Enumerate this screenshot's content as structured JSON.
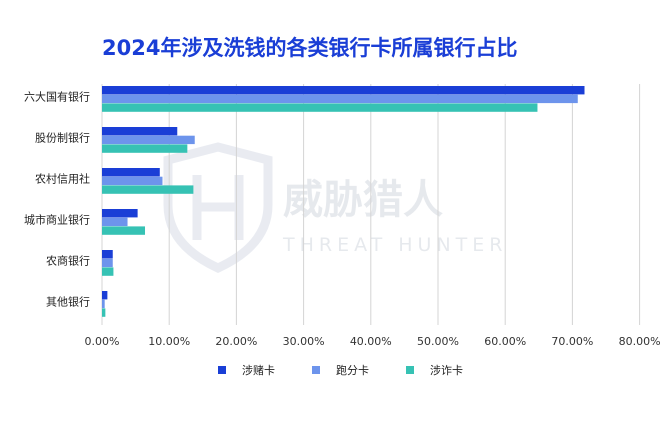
{
  "chart_data": {
    "type": "bar",
    "orientation": "horizontal",
    "title": "2024年涉及洗钱的各类银行卡所属银行占比",
    "xlabel": "",
    "ylabel": "",
    "categories": [
      "六大国有银行",
      "股份制银行",
      "农村信用社",
      "城市商业银行",
      "农商银行",
      "其他银行"
    ],
    "series": [
      {
        "name": "涉赌卡",
        "color": "#1a3ed6",
        "values": [
          71.8,
          11.2,
          8.6,
          5.3,
          1.6,
          0.8
        ]
      },
      {
        "name": "跑分卡",
        "color": "#6d94ec",
        "values": [
          70.8,
          13.8,
          9.0,
          3.8,
          1.6,
          0.4
        ]
      },
      {
        "name": "涉诈卡",
        "color": "#36c2b4",
        "values": [
          64.8,
          12.7,
          13.6,
          6.4,
          1.7,
          0.5
        ]
      }
    ],
    "xlim": [
      0,
      80
    ],
    "xticks": [
      "0.00%",
      "10.00%",
      "20.00%",
      "30.00%",
      "40.00%",
      "50.00%",
      "60.00%",
      "70.00%",
      "80.00%"
    ],
    "grid": true,
    "legend_position": "bottom"
  },
  "watermark": {
    "text_cn": "威胁猎人",
    "text_en": "THREAT HUNTER"
  }
}
